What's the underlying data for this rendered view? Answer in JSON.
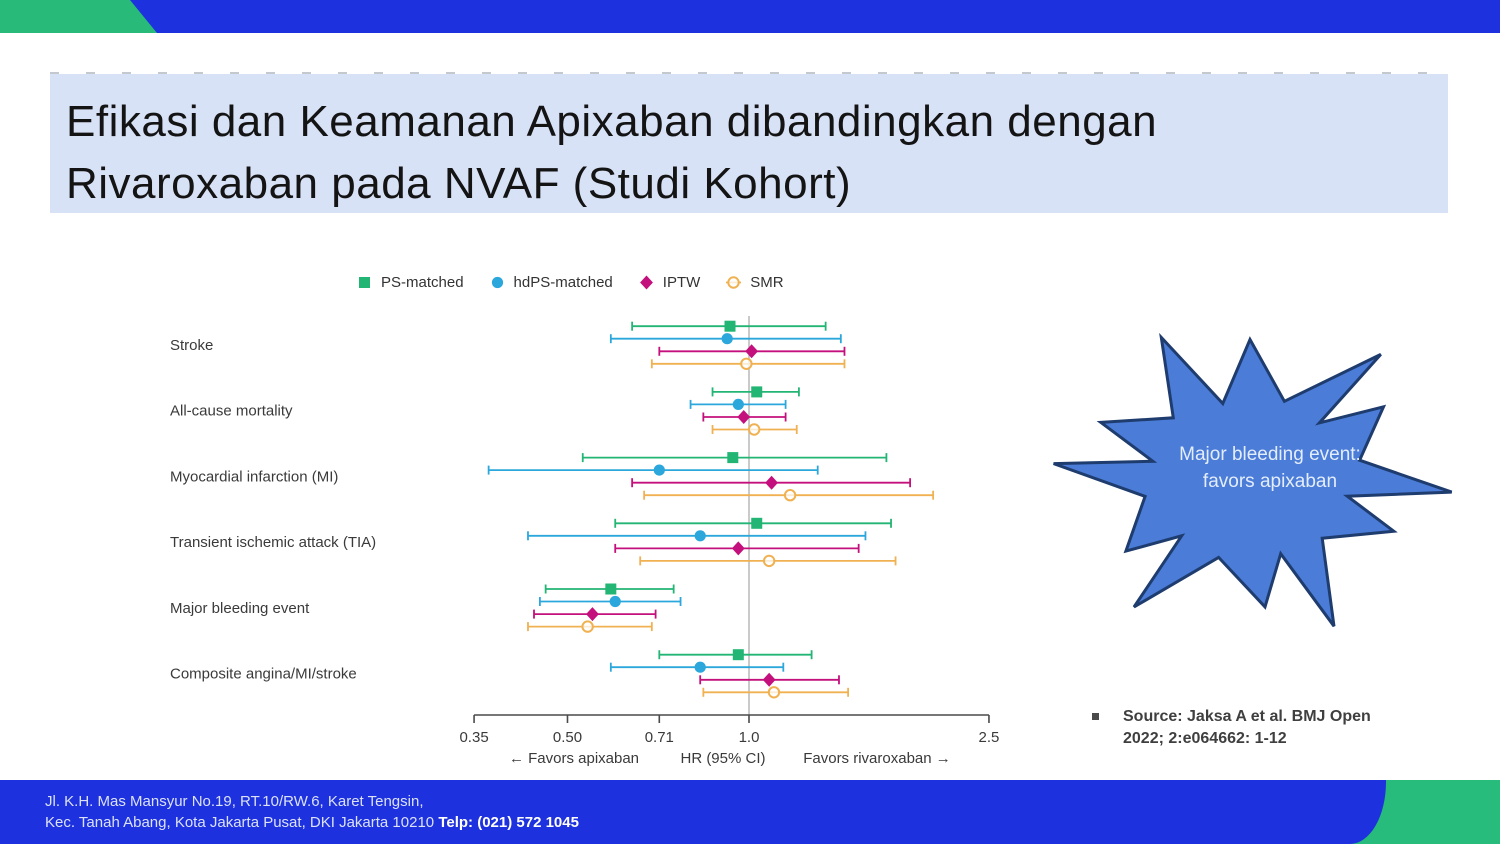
{
  "slide": {
    "title_line1": "Efikasi dan Keamanan Apixaban dibandingkan dengan",
    "title_line2": "Rivaroxaban pada NVAF (Studi Kohort)",
    "callout": {
      "line1": "Major bleeding event:",
      "line2": "favors apixaban",
      "fill_color": "#4A7CD8",
      "border_color": "#1F3C6E"
    },
    "source": {
      "bullet": "",
      "line1": "Source: Jaksa A et al. BMJ Open",
      "line2": "2022; 2:e064662: 1-12"
    },
    "footer": {
      "address_line1": "Jl. K.H. Mas Mansyur No.19, RT.10/RW.6, Karet Tengsin,",
      "address_line2": "Kec. Tanah Abang, Kota Jakarta Pusat, DKI Jakarta 10210 ",
      "phone": "Telp: (021) 572 1045"
    },
    "theme": {
      "accent_green": "#28BA78",
      "accent_blue": "#1D31DE",
      "title_bg": "#D8E2F7"
    }
  },
  "chart_data": {
    "type": "scatter",
    "subtype": "forest-plot",
    "xscale": "log",
    "xlabel": "HR (95% CI)",
    "x_ticks": [
      0.35,
      0.5,
      0.71,
      1.0,
      2.5
    ],
    "x_tick_labels": [
      "0.35",
      "0.50",
      "0.71",
      "1.0",
      "2.5"
    ],
    "xlim": [
      0.35,
      2.5
    ],
    "reference_line": 1.0,
    "legend_position": "top",
    "grid": false,
    "axis_annotations": {
      "left": "← Favors apixaban",
      "center": "HR (95% CI)",
      "right": "Favors rivaroxaban →"
    },
    "categories": [
      "Stroke",
      "All-cause mortality",
      "Myocardial infarction (MI)",
      "Transient ischemic attack (TIA)",
      "Major bleeding event",
      "Composite angina/MI/stroke"
    ],
    "series": [
      {
        "name": "PS-matched",
        "marker": "square",
        "color": "#22B573",
        "values": [
          [
            0.93,
            0.64,
            1.34
          ],
          [
            1.03,
            0.87,
            1.21
          ],
          [
            0.94,
            0.53,
            1.69
          ],
          [
            1.03,
            0.6,
            1.72
          ],
          [
            0.59,
            0.46,
            0.75
          ],
          [
            0.96,
            0.71,
            1.27
          ]
        ]
      },
      {
        "name": "hdPS-matched",
        "marker": "circle",
        "color": "#2BA7DC",
        "values": [
          [
            0.92,
            0.59,
            1.42
          ],
          [
            0.96,
            0.8,
            1.15
          ],
          [
            0.71,
            0.37,
            1.3
          ],
          [
            0.83,
            0.43,
            1.56
          ],
          [
            0.6,
            0.45,
            0.77
          ],
          [
            0.83,
            0.59,
            1.14
          ]
        ]
      },
      {
        "name": "IPTW",
        "marker": "diamond",
        "color": "#C4107C",
        "values": [
          [
            1.01,
            0.71,
            1.44
          ],
          [
            0.98,
            0.84,
            1.15
          ],
          [
            1.09,
            0.64,
            1.85
          ],
          [
            0.96,
            0.6,
            1.52
          ],
          [
            0.55,
            0.44,
            0.7
          ],
          [
            1.08,
            0.83,
            1.41
          ]
        ]
      },
      {
        "name": "SMR",
        "marker": "open-circle",
        "color": "#F0B152",
        "values": [
          [
            0.99,
            0.69,
            1.44
          ],
          [
            1.02,
            0.87,
            1.2
          ],
          [
            1.17,
            0.67,
            2.02
          ],
          [
            1.08,
            0.66,
            1.75
          ],
          [
            0.54,
            0.43,
            0.69
          ],
          [
            1.1,
            0.84,
            1.46
          ]
        ]
      }
    ]
  }
}
